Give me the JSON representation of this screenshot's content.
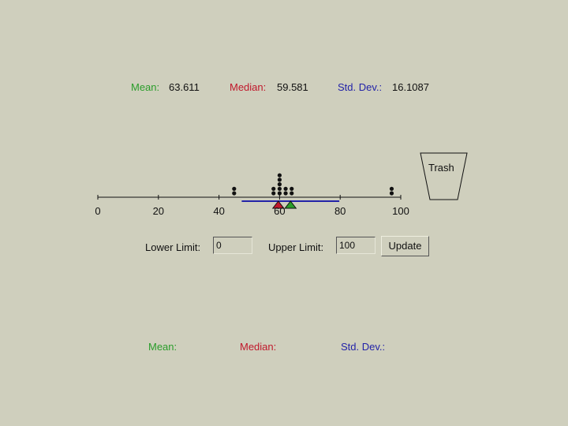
{
  "stats": {
    "mean_label": "Mean:",
    "mean_value": "63.611",
    "median_label": "Median:",
    "median_value": "59.581",
    "std_label": "Std. Dev.:",
    "std_value": "16.1087"
  },
  "bottom_stats": {
    "mean_label": "Mean:",
    "median_label": "Median:",
    "std_label": "Std. Dev.:"
  },
  "trash": {
    "label": "Trash"
  },
  "axis": {
    "min": 0,
    "max": 100,
    "ticks": [
      "0",
      "20",
      "40",
      "60",
      "80",
      "100"
    ]
  },
  "limits": {
    "lower_label": "Lower Limit:",
    "lower_value": "0",
    "upper_label": "Upper Limit:",
    "upper_value": "100",
    "update_label": "Update"
  },
  "chart_data": {
    "type": "scatter",
    "points": [
      45,
      45,
      58,
      58,
      60,
      60,
      60,
      60,
      60,
      62,
      62,
      64,
      64,
      97,
      97
    ],
    "mean": 63.611,
    "median": 59.581,
    "std_dev": 16.1087,
    "xlim": [
      0,
      100
    ],
    "colors": {
      "mean": "#2a9d2a",
      "median": "#c0182b",
      "std": "#2323a8"
    }
  }
}
